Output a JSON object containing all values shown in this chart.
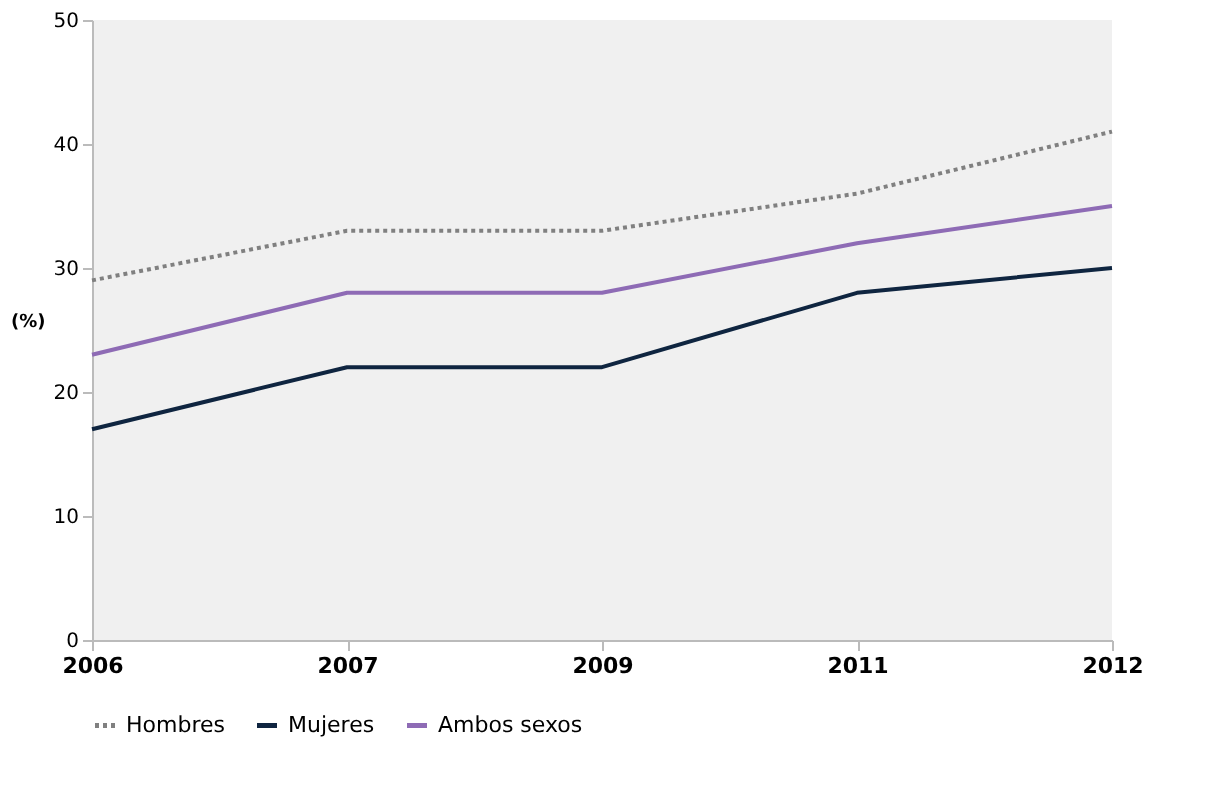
{
  "chart_data": {
    "type": "line",
    "ylabel": "(%)",
    "categories": [
      "2006",
      "2007",
      "2009",
      "2011",
      "2012"
    ],
    "series": [
      {
        "name": "Hombres",
        "color": "#808080",
        "line_style": "dotted",
        "values": [
          29,
          33,
          33,
          36,
          41
        ]
      },
      {
        "name": "Mujeres",
        "color": "#0f2540",
        "line_style": "solid",
        "values": [
          17,
          22,
          22,
          28,
          30
        ]
      },
      {
        "name": "Ambos sexos",
        "color": "#8e6bb5",
        "line_style": "solid",
        "values": [
          23,
          28,
          28,
          32,
          35
        ]
      }
    ],
    "ylim": [
      0,
      50
    ],
    "yticks": [
      0,
      10,
      20,
      30,
      40,
      50
    ],
    "grid": false,
    "legend": "bottom",
    "marker": "none"
  }
}
